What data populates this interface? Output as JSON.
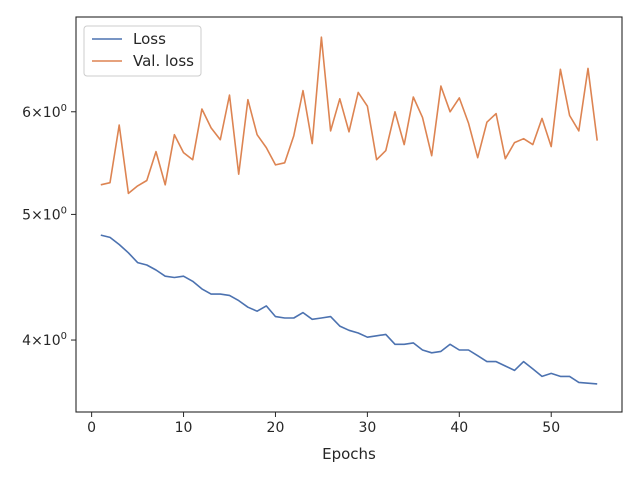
{
  "chart_data": {
    "type": "line",
    "xlabel": "Epochs",
    "ylabel": "",
    "yscale": "log",
    "xlim": [
      -1.7,
      57.7
    ],
    "ylim": [
      3.52,
      7.1
    ],
    "legend": {
      "placement": "top-left"
    },
    "x_ticks": [
      {
        "value": 0,
        "label": "0"
      },
      {
        "value": 10,
        "label": "10"
      },
      {
        "value": 20,
        "label": "20"
      },
      {
        "value": 30,
        "label": "30"
      },
      {
        "value": 40,
        "label": "40"
      },
      {
        "value": 50,
        "label": "50"
      }
    ],
    "y_ticks": [
      {
        "value": 4,
        "base": "4",
        "mult": "×",
        "pow": "10",
        "exp": "0"
      },
      {
        "value": 5,
        "base": "5",
        "mult": "×",
        "pow": "10",
        "exp": "0"
      },
      {
        "value": 6,
        "base": "6",
        "mult": "×",
        "pow": "10",
        "exp": "0"
      }
    ],
    "x": [
      1,
      2,
      3,
      4,
      5,
      6,
      7,
      8,
      9,
      10,
      11,
      12,
      13,
      14,
      15,
      16,
      17,
      18,
      19,
      20,
      21,
      22,
      23,
      24,
      25,
      26,
      27,
      28,
      29,
      30,
      31,
      32,
      33,
      34,
      35,
      36,
      37,
      38,
      39,
      40,
      41,
      42,
      43,
      44,
      45,
      46,
      47,
      48,
      49,
      50,
      51,
      52,
      53,
      54,
      55
    ],
    "series": [
      {
        "name": "Loss",
        "color": "#4c72b0",
        "values": [
          4.82,
          4.8,
          4.74,
          4.67,
          4.59,
          4.57,
          4.53,
          4.48,
          4.47,
          4.48,
          4.44,
          4.38,
          4.34,
          4.34,
          4.33,
          4.29,
          4.24,
          4.21,
          4.25,
          4.17,
          4.16,
          4.16,
          4.2,
          4.15,
          4.16,
          4.17,
          4.1,
          4.07,
          4.05,
          4.02,
          4.03,
          4.04,
          3.97,
          3.97,
          3.98,
          3.93,
          3.91,
          3.92,
          3.97,
          3.93,
          3.93,
          3.89,
          3.85,
          3.85,
          3.82,
          3.79,
          3.85,
          3.8,
          3.75,
          3.77,
          3.75,
          3.75,
          3.71,
          3.705,
          3.7
        ]
      },
      {
        "name": "Val. loss",
        "color": "#dd8452",
        "values": [
          5.27,
          5.29,
          5.86,
          5.19,
          5.26,
          5.31,
          5.59,
          5.27,
          5.76,
          5.58,
          5.51,
          6.03,
          5.83,
          5.71,
          6.18,
          5.37,
          6.13,
          5.76,
          5.63,
          5.46,
          5.48,
          5.75,
          6.23,
          5.67,
          6.85,
          5.8,
          6.14,
          5.79,
          6.21,
          6.06,
          5.51,
          5.6,
          6.0,
          5.66,
          6.16,
          5.94,
          5.55,
          6.28,
          6.0,
          6.15,
          5.88,
          5.53,
          5.89,
          5.98,
          5.52,
          5.68,
          5.72,
          5.66,
          5.93,
          5.64,
          6.47,
          5.96,
          5.8,
          6.48,
          5.7
        ]
      }
    ]
  }
}
